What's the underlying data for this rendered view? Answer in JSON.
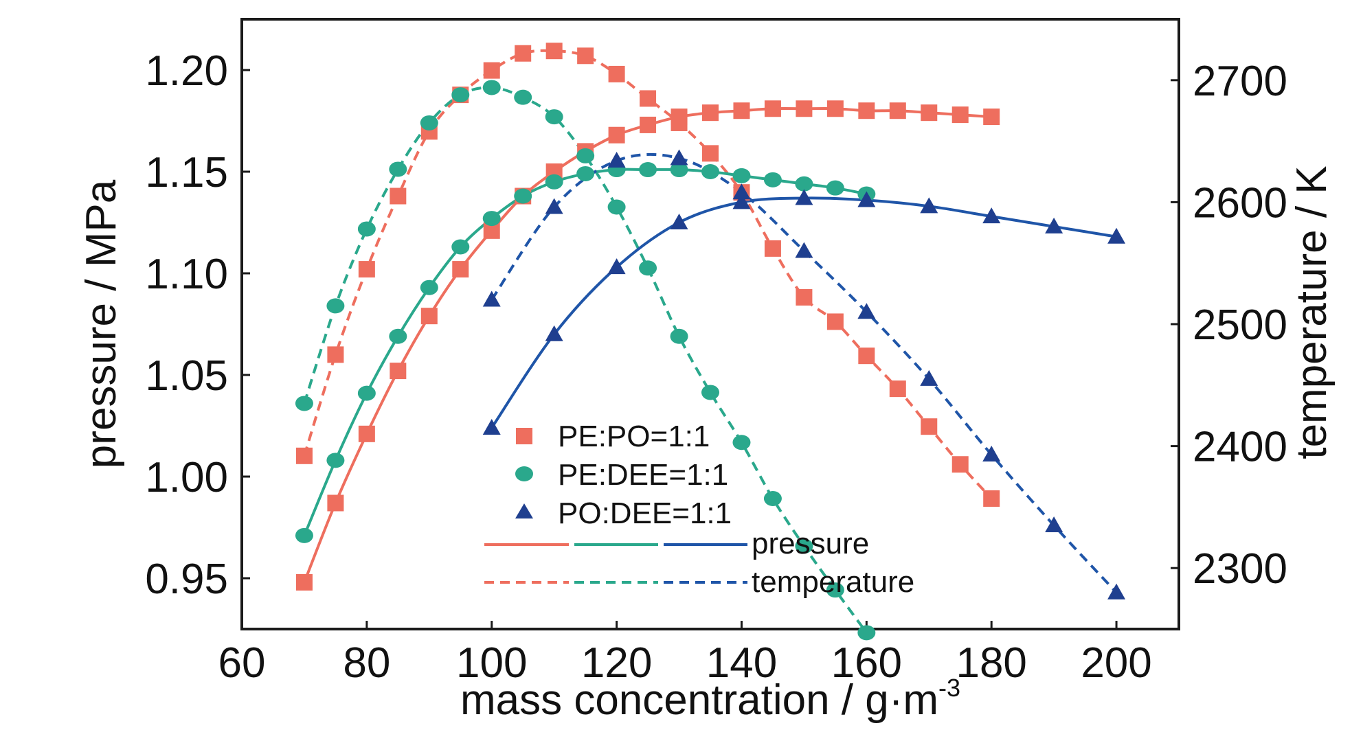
{
  "chart_data": {
    "type": "scatter",
    "title": "",
    "xlabel": "mass concentration / g·m",
    "xlabel_superscript": "-3",
    "ylabel_left": "pressure / MPa",
    "ylabel_right": "temperature / K",
    "xlim": [
      60,
      210
    ],
    "ylim_left": [
      0.925,
      1.225
    ],
    "ylim_right": [
      2250,
      2750
    ],
    "x_ticks": [
      "60",
      "80",
      "100",
      "120",
      "140",
      "160",
      "180",
      "200"
    ],
    "y_left_ticks": [
      "0.95",
      "1.00",
      "1.05",
      "1.10",
      "1.15",
      "1.20"
    ],
    "y_right_ticks": [
      "2300",
      "2400",
      "2500",
      "2600",
      "2700"
    ],
    "grid": false,
    "legend_position": "bottom-center",
    "legend": {
      "series": [
        "PE:PO=1:1",
        "PE:DEE=1:1",
        "PO:DEE=1:1"
      ],
      "line_styles": [
        "pressure",
        "temperature"
      ]
    },
    "colors": {
      "PE:PO=1:1": "#ee6e5e",
      "PE:DEE=1:1": "#2aa88c",
      "PO:DEE=1:1": "#1f55a8"
    },
    "series": [
      {
        "name": "PE:PO=1:1",
        "quantity": "pressure",
        "axis": "left",
        "line": "solid",
        "marker": "square",
        "x": [
          70,
          75,
          80,
          85,
          90,
          95,
          100,
          105,
          110,
          115,
          120,
          125,
          130,
          135,
          140,
          145,
          150,
          155,
          160,
          165,
          170,
          175,
          180
        ],
        "y": [
          0.948,
          0.987,
          1.021,
          1.052,
          1.079,
          1.102,
          1.121,
          1.138,
          1.15,
          1.16,
          1.168,
          1.173,
          1.177,
          1.179,
          1.18,
          1.181,
          1.181,
          1.181,
          1.18,
          1.18,
          1.179,
          1.178,
          1.177
        ]
      },
      {
        "name": "PE:PO=1:1",
        "quantity": "temperature",
        "axis": "right",
        "line": "dashed",
        "marker": "square",
        "x": [
          70,
          75,
          80,
          85,
          90,
          95,
          100,
          105,
          110,
          115,
          120,
          125,
          130,
          135,
          140,
          145,
          150,
          155,
          160,
          165,
          170,
          175,
          180
        ],
        "y": [
          2392,
          2475,
          2545,
          2605,
          2658,
          2688,
          2708,
          2722,
          2724,
          2720,
          2705,
          2685,
          2665,
          2640,
          2608,
          2562,
          2522,
          2502,
          2474,
          2447,
          2416,
          2385,
          2357
        ]
      },
      {
        "name": "PE:DEE=1:1",
        "quantity": "pressure",
        "axis": "left",
        "line": "solid",
        "marker": "circle",
        "x": [
          70,
          75,
          80,
          85,
          90,
          95,
          100,
          105,
          110,
          115,
          120,
          125,
          130,
          135,
          140,
          145,
          150,
          155,
          160
        ],
        "y": [
          0.971,
          1.008,
          1.041,
          1.069,
          1.093,
          1.113,
          1.127,
          1.138,
          1.145,
          1.149,
          1.151,
          1.151,
          1.151,
          1.15,
          1.148,
          1.146,
          1.144,
          1.142,
          1.139
        ]
      },
      {
        "name": "PE:DEE=1:1",
        "quantity": "temperature",
        "axis": "right",
        "line": "dashed",
        "marker": "circle",
        "x": [
          70,
          75,
          80,
          85,
          90,
          95,
          100,
          105,
          110,
          115,
          120,
          125,
          130,
          135,
          140,
          145,
          150,
          155,
          160
        ],
        "y": [
          2435,
          2515,
          2578,
          2627,
          2665,
          2688,
          2694,
          2686,
          2670,
          2638,
          2596,
          2546,
          2490,
          2444,
          2403,
          2357,
          2318,
          2282,
          2247
        ]
      },
      {
        "name": "PO:DEE=1:1",
        "quantity": "pressure",
        "axis": "left",
        "line": "solid",
        "marker": "triangle",
        "x": [
          100,
          110,
          120,
          130,
          140,
          150,
          160,
          170,
          180,
          190,
          200
        ],
        "y": [
          1.024,
          1.07,
          1.103,
          1.125,
          1.135,
          1.137,
          1.136,
          1.133,
          1.128,
          1.123,
          1.118
        ]
      },
      {
        "name": "PO:DEE=1:1",
        "quantity": "temperature",
        "axis": "right",
        "line": "dashed",
        "marker": "triangle",
        "x": [
          100,
          110,
          120,
          130,
          140,
          150,
          160,
          170,
          180,
          190,
          200
        ],
        "y": [
          2520,
          2596,
          2634,
          2636,
          2608,
          2560,
          2510,
          2455,
          2393,
          2335,
          2280
        ]
      }
    ]
  }
}
